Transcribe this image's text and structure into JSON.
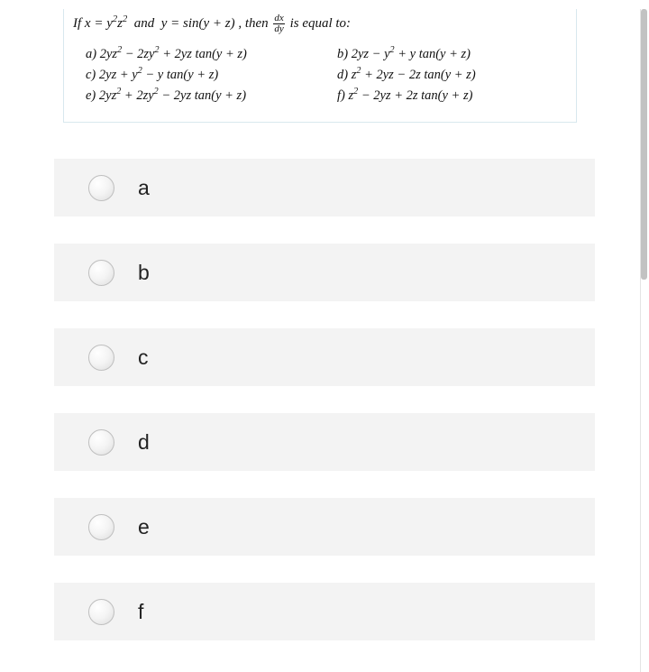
{
  "question": {
    "prompt_html": "If x = y<sup>2</sup>z<sup>2</sup>&nbsp;&nbsp;and&nbsp;&nbsp;y = sin(y + z) , then <span class='frac'><span class='num'>dx</span><span class='den'>dy</span></span> is equal to:",
    "choices": [
      {
        "label": "a)",
        "expr_html": "2yz<sup>2</sup> − 2zy<sup>2</sup> + 2yz tan(y + z)"
      },
      {
        "label": "b)",
        "expr_html": "2yz − y<sup>2</sup> + y tan(y + z)"
      },
      {
        "label": "c)",
        "expr_html": "2yz + y<sup>2</sup> − y tan(y + z)"
      },
      {
        "label": "d)",
        "expr_html": "z<sup>2</sup> + 2yz − 2z tan(y + z)"
      },
      {
        "label": "e)",
        "expr_html": "2yz<sup>2</sup> + 2zy<sup>2</sup> − 2yz tan(y + z)"
      },
      {
        "label": "f)",
        "expr_html": "z<sup>2</sup> − 2yz + 2z tan(y + z)"
      }
    ]
  },
  "options": [
    {
      "letter": "a"
    },
    {
      "letter": "b"
    },
    {
      "letter": "c"
    },
    {
      "letter": "d"
    },
    {
      "letter": "e"
    },
    {
      "letter": "f"
    }
  ],
  "colors": {
    "option_bg": "#f3f3f3",
    "question_border": "#d8e8ee",
    "radio_border": "#bfbfbf",
    "text": "#111111"
  }
}
